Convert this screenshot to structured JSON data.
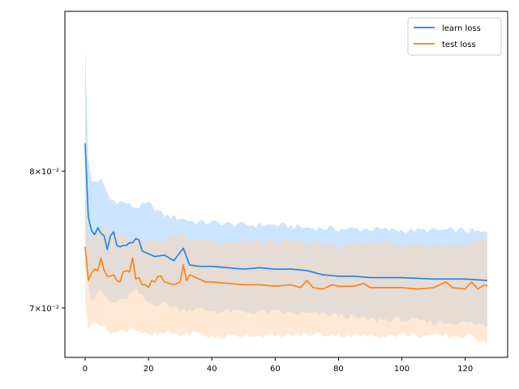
{
  "chart_data": {
    "type": "line",
    "title": "",
    "xlabel": "",
    "ylabel": "",
    "yscale": "log",
    "xlim": [
      -6.4,
      133.4
    ],
    "ylim": [
      0.0667,
      0.0935
    ],
    "grid": false,
    "legend_position": "top-right",
    "xticks": [
      0,
      20,
      40,
      60,
      80,
      100,
      120
    ],
    "xtick_labels": [
      "0",
      "20",
      "40",
      "60",
      "80",
      "100",
      "120"
    ],
    "yticks": [
      0.07,
      0.08
    ],
    "ytick_labels": [
      "7×10⁻²",
      "8×10⁻²"
    ],
    "series": [
      {
        "name": "learn loss",
        "color": "#1f7fe8",
        "band_color": "#a9d2ff",
        "anchors": [
          [
            0,
            0.0822
          ],
          [
            1,
            0.0765
          ],
          [
            2,
            0.0755
          ],
          [
            3,
            0.0752
          ],
          [
            4,
            0.0757
          ],
          [
            5,
            0.0753
          ],
          [
            6,
            0.0751
          ],
          [
            7,
            0.0741
          ],
          [
            8,
            0.0751
          ],
          [
            9,
            0.0754
          ],
          [
            10,
            0.0744
          ],
          [
            11,
            0.0743
          ],
          [
            12,
            0.0744
          ],
          [
            13,
            0.0744
          ],
          [
            14,
            0.0746
          ],
          [
            15,
            0.0746
          ],
          [
            16,
            0.0749
          ],
          [
            17,
            0.0748
          ],
          [
            18,
            0.074
          ],
          [
            20,
            0.0738
          ],
          [
            22,
            0.0736
          ],
          [
            25,
            0.0737
          ],
          [
            28,
            0.0733
          ],
          [
            31,
            0.0742
          ],
          [
            33,
            0.073
          ],
          [
            36,
            0.0729
          ],
          [
            40,
            0.0729
          ],
          [
            45,
            0.0728
          ],
          [
            50,
            0.0727
          ],
          [
            55,
            0.0728
          ],
          [
            60,
            0.0727
          ],
          [
            65,
            0.0727
          ],
          [
            70,
            0.0726
          ],
          [
            75,
            0.0723
          ],
          [
            80,
            0.0722
          ],
          [
            85,
            0.0722
          ],
          [
            90,
            0.0721
          ],
          [
            100,
            0.0721
          ],
          [
            110,
            0.072
          ],
          [
            120,
            0.072
          ],
          [
            127,
            0.0719
          ]
        ],
        "band_anchors": [
          [
            0,
            0.0905,
            0.0756
          ],
          [
            1,
            0.0809,
            0.0718
          ],
          [
            2,
            0.0792,
            0.0705
          ],
          [
            5,
            0.0793,
            0.0712
          ],
          [
            8,
            0.0778,
            0.0703
          ],
          [
            12,
            0.0776,
            0.0705
          ],
          [
            16,
            0.0772,
            0.0712
          ],
          [
            20,
            0.0775,
            0.0703
          ],
          [
            25,
            0.0766,
            0.0703
          ],
          [
            30,
            0.0764,
            0.0699
          ],
          [
            35,
            0.0761,
            0.0699
          ],
          [
            40,
            0.0761,
            0.0698
          ],
          [
            50,
            0.0759,
            0.0697
          ],
          [
            60,
            0.0759,
            0.0697
          ],
          [
            70,
            0.0757,
            0.0696
          ],
          [
            80,
            0.0756,
            0.0695
          ],
          [
            90,
            0.0756,
            0.0692
          ],
          [
            100,
            0.0755,
            0.0692
          ],
          [
            110,
            0.0755,
            0.069
          ],
          [
            120,
            0.0755,
            0.069
          ],
          [
            127,
            0.0753,
            0.0688
          ]
        ]
      },
      {
        "name": "test loss",
        "color": "#ff7f0e",
        "band_color": "#ffd4ac",
        "anchors": [
          [
            0,
            0.0743
          ],
          [
            1,
            0.0719
          ],
          [
            2,
            0.0724
          ],
          [
            3,
            0.0727
          ],
          [
            4,
            0.0726
          ],
          [
            5,
            0.0735
          ],
          [
            6,
            0.0726
          ],
          [
            7,
            0.0722
          ],
          [
            8,
            0.0722
          ],
          [
            9,
            0.0723
          ],
          [
            10,
            0.0719
          ],
          [
            11,
            0.0718
          ],
          [
            12,
            0.0725
          ],
          [
            13,
            0.0726
          ],
          [
            14,
            0.0725
          ],
          [
            15,
            0.0735
          ],
          [
            16,
            0.072
          ],
          [
            17,
            0.0721
          ],
          [
            18,
            0.0716
          ],
          [
            19,
            0.0716
          ],
          [
            20,
            0.0714
          ],
          [
            21,
            0.0719
          ],
          [
            22,
            0.0718
          ],
          [
            23,
            0.0722
          ],
          [
            24,
            0.0722
          ],
          [
            25,
            0.0718
          ],
          [
            28,
            0.0716
          ],
          [
            30,
            0.0718
          ],
          [
            31,
            0.073
          ],
          [
            32,
            0.0719
          ],
          [
            33,
            0.0723
          ],
          [
            35,
            0.0721
          ],
          [
            38,
            0.0718
          ],
          [
            40,
            0.0718
          ],
          [
            45,
            0.0717
          ],
          [
            50,
            0.0716
          ],
          [
            55,
            0.0716
          ],
          [
            60,
            0.0715
          ],
          [
            65,
            0.0716
          ],
          [
            68,
            0.0714
          ],
          [
            70,
            0.0719
          ],
          [
            72,
            0.0714
          ],
          [
            75,
            0.0713
          ],
          [
            78,
            0.0716
          ],
          [
            80,
            0.0715
          ],
          [
            85,
            0.0715
          ],
          [
            88,
            0.0717
          ],
          [
            90,
            0.0714
          ],
          [
            95,
            0.0714
          ],
          [
            100,
            0.0714
          ],
          [
            105,
            0.0713
          ],
          [
            110,
            0.0714
          ],
          [
            114,
            0.0718
          ],
          [
            116,
            0.0714
          ],
          [
            120,
            0.0713
          ],
          [
            122,
            0.0718
          ],
          [
            124,
            0.0713
          ],
          [
            126,
            0.0716
          ],
          [
            127,
            0.0715
          ]
        ],
        "band_anchors": [
          [
            0,
            0.0781,
            0.0705
          ],
          [
            1,
            0.0749,
            0.0684
          ],
          [
            3,
            0.0751,
            0.0693
          ],
          [
            6,
            0.0756,
            0.0686
          ],
          [
            10,
            0.0752,
            0.0683
          ],
          [
            15,
            0.075,
            0.0687
          ],
          [
            20,
            0.0748,
            0.0681
          ],
          [
            25,
            0.0749,
            0.0683
          ],
          [
            30,
            0.0751,
            0.0682
          ],
          [
            35,
            0.0748,
            0.0683
          ],
          [
            40,
            0.0748,
            0.068
          ],
          [
            50,
            0.0747,
            0.0682
          ],
          [
            60,
            0.0747,
            0.0681
          ],
          [
            70,
            0.0746,
            0.0682
          ],
          [
            80,
            0.0744,
            0.0682
          ],
          [
            90,
            0.0746,
            0.0681
          ],
          [
            100,
            0.0745,
            0.0682
          ],
          [
            110,
            0.0744,
            0.0681
          ],
          [
            120,
            0.0745,
            0.0681
          ],
          [
            127,
            0.0749,
            0.0678
          ]
        ]
      }
    ]
  }
}
